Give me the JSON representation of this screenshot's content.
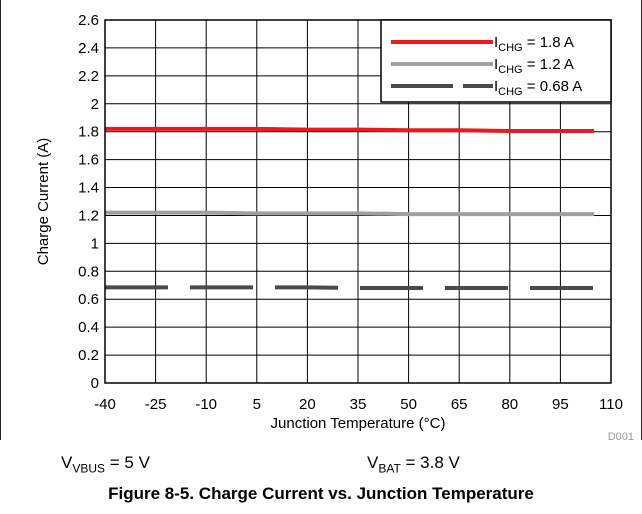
{
  "chart_data": {
    "type": "line",
    "xlabel": "Junction Temperature (°C)",
    "ylabel": "Charge Current (A)",
    "xlim": [
      -40,
      110
    ],
    "ylim": [
      0,
      2.6
    ],
    "x_ticks": [
      "-40",
      "-25",
      "-10",
      "5",
      "20",
      "35",
      "50",
      "65",
      "80",
      "95",
      "110"
    ],
    "y_ticks": [
      "0",
      "0.2",
      "0.4",
      "0.6",
      "0.8",
      "1",
      "1.2",
      "1.4",
      "1.6",
      "1.8",
      "2",
      "2.2",
      "2.4",
      "2.6"
    ],
    "grid": true,
    "legend_position": "top-right",
    "series": [
      {
        "name_main": "I",
        "name_sub": "CHG",
        "name_value": " = 1.8 A",
        "color": "#e8191f",
        "style": "solid",
        "x": [
          -40,
          -25,
          -10,
          5,
          20,
          35,
          50,
          65,
          80,
          95,
          105
        ],
        "y": [
          1.82,
          1.82,
          1.82,
          1.82,
          1.815,
          1.815,
          1.81,
          1.81,
          1.805,
          1.805,
          1.805
        ]
      },
      {
        "name_main": "I",
        "name_sub": "CHG",
        "name_value": " = 1.2 A",
        "color": "#a0a0a0",
        "style": "solid",
        "x": [
          -40,
          -25,
          -10,
          5,
          20,
          35,
          50,
          65,
          80,
          95,
          105
        ],
        "y": [
          1.22,
          1.22,
          1.22,
          1.215,
          1.215,
          1.215,
          1.21,
          1.21,
          1.21,
          1.21,
          1.21
        ]
      },
      {
        "name_main": "I",
        "name_sub": "CHG",
        "name_value": " = 0.68 A",
        "color": "#4a4a4a",
        "style": "dashed",
        "x": [
          -40,
          -25,
          -10,
          5,
          20,
          35,
          50,
          65,
          80,
          95,
          105
        ],
        "y": [
          0.685,
          0.685,
          0.685,
          0.685,
          0.685,
          0.68,
          0.68,
          0.68,
          0.68,
          0.68,
          0.68
        ]
      }
    ],
    "code_label": "D001"
  },
  "conditions": {
    "vbus": {
      "main": "V",
      "sub": "VBUS",
      "value": " = 5 V"
    },
    "vbat": {
      "main": "V",
      "sub": "BAT",
      "value": " = 3.8 V"
    }
  },
  "caption": "Figure 8-5. Charge Current vs. Junction Temperature"
}
